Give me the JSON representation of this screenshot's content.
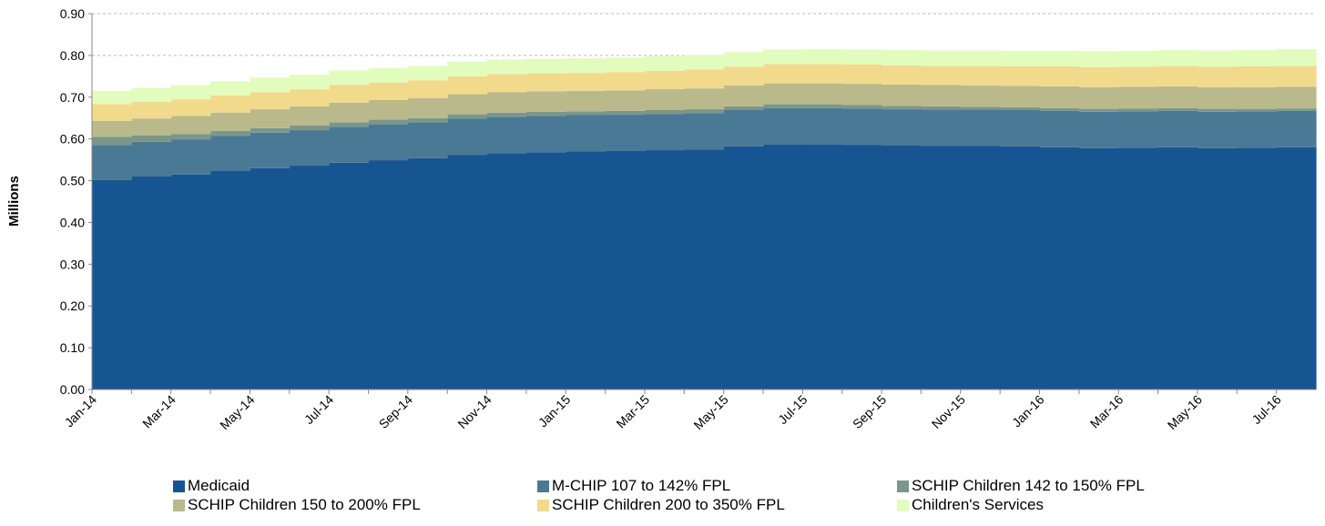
{
  "chart_data": {
    "type": "stacked-step-area",
    "y_label": "Millions",
    "categories": [
      "Jan-14",
      null,
      "Mar-14",
      null,
      "May-14",
      null,
      "Jul-14",
      null,
      "Sep-14",
      null,
      "Nov-14",
      null,
      "Jan-15",
      null,
      "Mar-15",
      null,
      "May-15",
      null,
      "Jul-15",
      null,
      "Sep-15",
      null,
      "Nov-15",
      null,
      "Jan-16",
      null,
      "Mar-16",
      null,
      "May-16",
      null,
      "Jul-16"
    ],
    "series": [
      {
        "name": "Medicaid",
        "color": "#175592",
        "values": [
          0.502,
          0.51,
          0.515,
          0.523,
          0.53,
          0.536,
          0.543,
          0.549,
          0.554,
          0.562,
          0.566,
          0.568,
          0.57,
          0.571,
          0.573,
          0.575,
          0.582,
          0.587,
          0.587,
          0.586,
          0.584,
          0.583,
          0.583,
          0.582,
          0.58,
          0.578,
          0.579,
          0.58,
          0.578,
          0.579,
          0.58
        ]
      },
      {
        "name": "M-CHIP 107 to 142%  FPL",
        "color": "#4a7996",
        "values": [
          0.083,
          0.083,
          0.084,
          0.084,
          0.085,
          0.085,
          0.086,
          0.086,
          0.086,
          0.087,
          0.087,
          0.087,
          0.087,
          0.087,
          0.087,
          0.087,
          0.087,
          0.087,
          0.087,
          0.087,
          0.087,
          0.087,
          0.087,
          0.087,
          0.087,
          0.087,
          0.087,
          0.087,
          0.087,
          0.087,
          0.087
        ]
      },
      {
        "name": "SCHIP Children 142 to 150% FPL",
        "color": "#7c968a",
        "values": [
          0.02,
          0.015,
          0.013,
          0.012,
          0.011,
          0.011,
          0.011,
          0.011,
          0.01,
          0.01,
          0.01,
          0.01,
          0.009,
          0.009,
          0.009,
          0.009,
          0.009,
          0.009,
          0.009,
          0.008,
          0.008,
          0.008,
          0.007,
          0.007,
          0.007,
          0.007,
          0.007,
          0.007,
          0.007,
          0.006,
          0.006
        ]
      },
      {
        "name": "SCHIP  Children 150 to 200% FPL",
        "color": "#b9b98c",
        "values": [
          0.038,
          0.041,
          0.043,
          0.044,
          0.045,
          0.046,
          0.047,
          0.047,
          0.048,
          0.048,
          0.049,
          0.049,
          0.049,
          0.049,
          0.05,
          0.05,
          0.05,
          0.05,
          0.05,
          0.051,
          0.051,
          0.051,
          0.051,
          0.051,
          0.052,
          0.052,
          0.052,
          0.052,
          0.052,
          0.052,
          0.052
        ]
      },
      {
        "name": "SCHIP Children 200 to 350% FPL",
        "color": "#f2da8c",
        "values": [
          0.04,
          0.04,
          0.04,
          0.041,
          0.041,
          0.041,
          0.042,
          0.042,
          0.042,
          0.043,
          0.043,
          0.043,
          0.043,
          0.044,
          0.044,
          0.045,
          0.045,
          0.046,
          0.046,
          0.046,
          0.046,
          0.046,
          0.047,
          0.047,
          0.048,
          0.048,
          0.048,
          0.049,
          0.049,
          0.05,
          0.05
        ]
      },
      {
        "name": "Children's Services",
        "color": "#e2fcbe",
        "values": [
          0.032,
          0.033,
          0.034,
          0.034,
          0.035,
          0.035,
          0.035,
          0.035,
          0.035,
          0.035,
          0.035,
          0.035,
          0.035,
          0.035,
          0.035,
          0.035,
          0.035,
          0.035,
          0.036,
          0.036,
          0.037,
          0.037,
          0.037,
          0.037,
          0.037,
          0.038,
          0.038,
          0.038,
          0.039,
          0.039,
          0.04
        ]
      }
    ],
    "ylim": [
      0,
      0.9
    ],
    "yticks": [
      {
        "value": 0,
        "label": "0.00"
      },
      {
        "value": 0.1,
        "label": "0.10"
      },
      {
        "value": 0.2,
        "label": "0.20"
      },
      {
        "value": 0.3,
        "label": "0.30"
      },
      {
        "value": 0.4,
        "label": "0.40"
      },
      {
        "value": 0.5,
        "label": "0.50"
      },
      {
        "value": 0.6,
        "label": "0.60"
      },
      {
        "value": 0.7,
        "label": "0.70"
      },
      {
        "value": 0.8,
        "label": "0.80"
      },
      {
        "value": 0.9,
        "label": "0.90"
      }
    ],
    "grid": true,
    "legend": "bottom"
  }
}
